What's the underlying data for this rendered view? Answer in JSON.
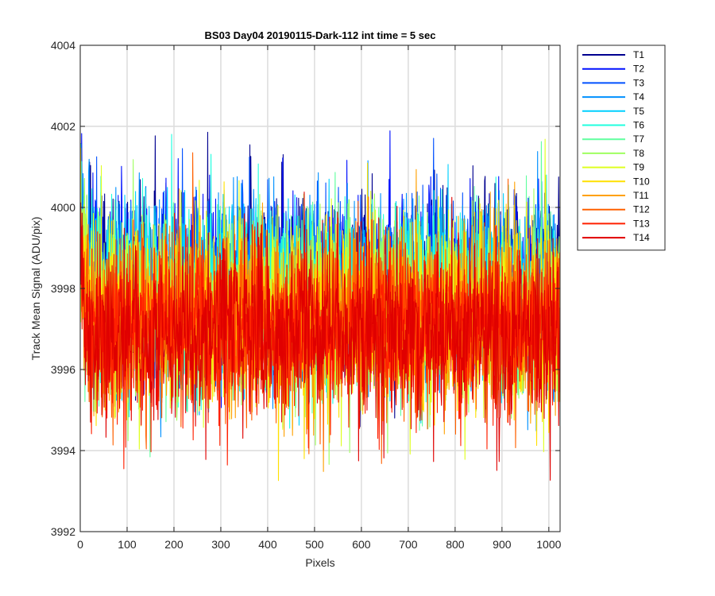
{
  "chart_data": {
    "type": "line",
    "title": "BS03 Day04 20190115-Dark-112 int time = 5 sec",
    "xlabel": "Pixels",
    "ylabel": "Track Mean Signal (ADU/pix)",
    "xlim": [
      0,
      1024
    ],
    "ylim": [
      3992,
      4004
    ],
    "xticks": [
      0,
      100,
      200,
      300,
      400,
      500,
      600,
      700,
      800,
      900,
      1000
    ],
    "yticks": [
      3992,
      3994,
      3996,
      3998,
      4000,
      4002,
      4004
    ],
    "grid": true,
    "legend_position": "outside-top-right",
    "n_points": 1024,
    "series": [
      {
        "name": "T1",
        "color": "#00008f",
        "mean": 3998.2,
        "spread": 1.1
      },
      {
        "name": "T2",
        "color": "#0010ff",
        "mean": 3998.1,
        "spread": 1.1
      },
      {
        "name": "T3",
        "color": "#0050ff",
        "mean": 3998.0,
        "spread": 1.1
      },
      {
        "name": "T4",
        "color": "#0090ff",
        "mean": 3997.9,
        "spread": 1.1
      },
      {
        "name": "T5",
        "color": "#00d0ff",
        "mean": 3997.8,
        "spread": 1.1
      },
      {
        "name": "T6",
        "color": "#20ffdf",
        "mean": 3997.7,
        "spread": 1.1
      },
      {
        "name": "T7",
        "color": "#60ff9f",
        "mean": 3997.6,
        "spread": 1.1
      },
      {
        "name": "T8",
        "color": "#9fff60",
        "mean": 3997.5,
        "spread": 1.1
      },
      {
        "name": "T9",
        "color": "#dfff20",
        "mean": 3997.4,
        "spread": 1.1
      },
      {
        "name": "T10",
        "color": "#ffe000",
        "mean": 3997.3,
        "spread": 1.1
      },
      {
        "name": "T11",
        "color": "#ffa000",
        "mean": 3997.2,
        "spread": 1.1
      },
      {
        "name": "T12",
        "color": "#ff6000",
        "mean": 3997.1,
        "spread": 1.1
      },
      {
        "name": "T13",
        "color": "#ff2000",
        "mean": 3997.0,
        "spread": 1.1
      },
      {
        "name": "T14",
        "color": "#e00000",
        "mean": 3996.9,
        "spread": 1.1
      }
    ]
  }
}
